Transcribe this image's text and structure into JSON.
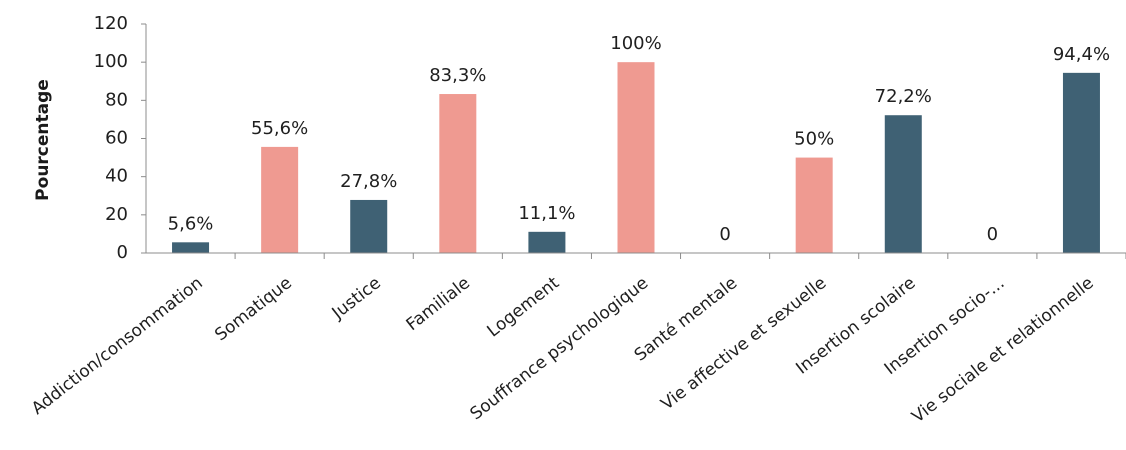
{
  "chart_data": {
    "type": "bar",
    "title": "",
    "xlabel": "",
    "ylabel": "Pourcentage",
    "ylim": [
      0,
      120
    ],
    "yticks": [
      "0",
      "20",
      "40",
      "60",
      "80",
      "100",
      "120"
    ],
    "grid": false,
    "legend": "none",
    "categories": [
      "Addiction/consommation",
      "Somatique",
      "Justice",
      "Familiale",
      "Logement",
      "Souffrance psychologique",
      "Santé mentale",
      "Vie affective et sexuelle",
      "Insertion scolaire",
      "Insertion socio-...",
      "Vie sociale et relationnelle"
    ],
    "values": [
      5.6,
      55.6,
      27.8,
      83.3,
      11.1,
      100,
      0,
      50,
      72.2,
      0,
      94.4
    ],
    "data_labels": [
      "5,6%",
      "55,6%",
      "27,8%",
      "83,3%",
      "11,1%",
      "100%",
      "0",
      "50%",
      "72,2%",
      "0",
      "94,4%"
    ],
    "bar_colors": [
      "#3f6174",
      "#ef9a91",
      "#3f6174",
      "#ef9a91",
      "#3f6174",
      "#ef9a91",
      "#3f6174",
      "#ef9a91",
      "#3f6174",
      "#3f6174",
      "#3f6174"
    ]
  }
}
